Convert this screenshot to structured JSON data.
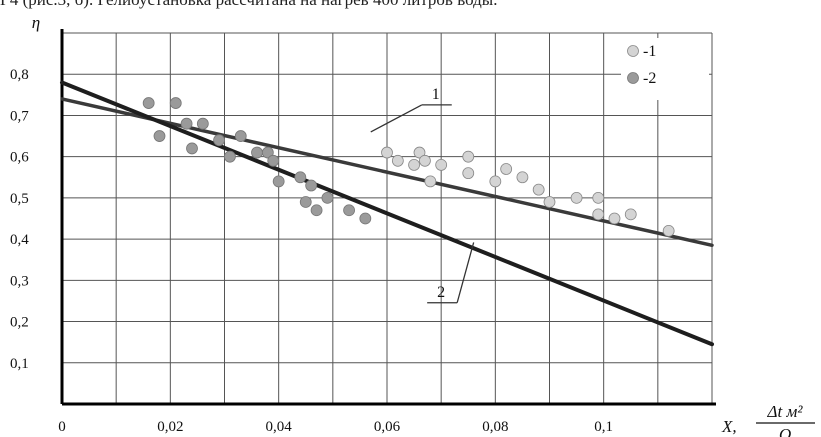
{
  "caption": "Г4 (рис.3, б). Гелиоустановка рассчитана на нагрев 400 литров воды.",
  "chart_data": {
    "type": "scatter",
    "title": "",
    "ylabel": "η",
    "xlabel": {
      "prefix": "X,",
      "numerator": "Δt м²",
      "denominator": "Q"
    },
    "xlim": [
      0,
      0.12
    ],
    "ylim": [
      0,
      0.9
    ],
    "grid": true,
    "x_ticks": [
      "0",
      "0,02",
      "0,04",
      "0,06",
      "0,08",
      "0,1"
    ],
    "x_tick_values": [
      0,
      0.02,
      0.04,
      0.06,
      0.08,
      0.1
    ],
    "y_ticks": [
      "0,1",
      "0,2",
      "0,3",
      "0,4",
      "0,5",
      "0,6",
      "0,7",
      "0,8"
    ],
    "y_tick_values": [
      0.1,
      0.2,
      0.3,
      0.4,
      0.5,
      0.6,
      0.7,
      0.8
    ],
    "y_top_label": "η",
    "legend": {
      "placement": "top-right",
      "entries": [
        {
          "marker": "○",
          "label": "-1",
          "color": "#d4d4d4"
        },
        {
          "marker": "●",
          "label": "-2",
          "color": "#9a9a9a"
        }
      ]
    },
    "series": [
      {
        "name": "-1",
        "color": "#d4d4d4",
        "points": [
          [
            0.06,
            0.61
          ],
          [
            0.062,
            0.59
          ],
          [
            0.065,
            0.58
          ],
          [
            0.066,
            0.61
          ],
          [
            0.067,
            0.59
          ],
          [
            0.068,
            0.54
          ],
          [
            0.07,
            0.58
          ],
          [
            0.075,
            0.6
          ],
          [
            0.075,
            0.56
          ],
          [
            0.08,
            0.54
          ],
          [
            0.082,
            0.57
          ],
          [
            0.085,
            0.55
          ],
          [
            0.088,
            0.52
          ],
          [
            0.09,
            0.49
          ],
          [
            0.095,
            0.5
          ],
          [
            0.099,
            0.5
          ],
          [
            0.099,
            0.46
          ],
          [
            0.102,
            0.45
          ],
          [
            0.105,
            0.46
          ],
          [
            0.112,
            0.42
          ]
        ]
      },
      {
        "name": "-2",
        "color": "#9a9a9a",
        "points": [
          [
            0.016,
            0.73
          ],
          [
            0.018,
            0.65
          ],
          [
            0.021,
            0.73
          ],
          [
            0.023,
            0.68
          ],
          [
            0.024,
            0.62
          ],
          [
            0.026,
            0.68
          ],
          [
            0.029,
            0.64
          ],
          [
            0.031,
            0.6
          ],
          [
            0.033,
            0.65
          ],
          [
            0.036,
            0.61
          ],
          [
            0.038,
            0.61
          ],
          [
            0.039,
            0.59
          ],
          [
            0.04,
            0.54
          ],
          [
            0.044,
            0.55
          ],
          [
            0.045,
            0.49
          ],
          [
            0.046,
            0.53
          ],
          [
            0.047,
            0.47
          ],
          [
            0.049,
            0.5
          ],
          [
            0.053,
            0.47
          ],
          [
            0.056,
            0.45
          ]
        ]
      }
    ],
    "lines": [
      {
        "label": "1",
        "x": [
          0,
          0.12
        ],
        "y": [
          0.74,
          0.385
        ],
        "label_at": [
          0.069,
          0.745
        ],
        "leader_to": [
          0.057,
          0.66
        ]
      },
      {
        "label": "2",
        "x": [
          0,
          0.12
        ],
        "y": [
          0.78,
          0.145
        ],
        "label_at": [
          0.07,
          0.265
        ],
        "leader_to": [
          0.076,
          0.392
        ]
      }
    ]
  }
}
